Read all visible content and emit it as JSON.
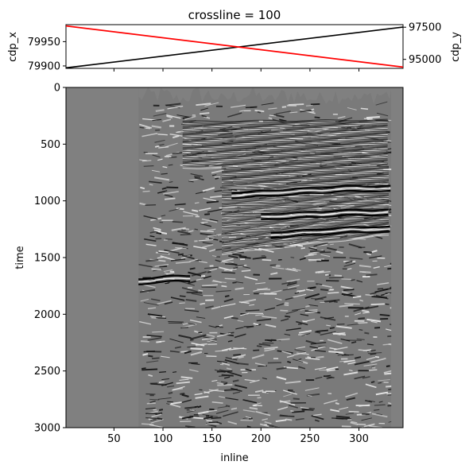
{
  "chart_data": [
    {
      "type": "line",
      "title": "crossline = 100",
      "ylabel_left": "cdp_x",
      "ylabel_right": "cdp_y",
      "xlim": [
        1,
        345
      ],
      "ylim_left": [
        79895,
        79985
      ],
      "ylim_right": [
        94300,
        97700
      ],
      "yticks_left": [
        79900,
        79950
      ],
      "yticks_left_labels": [
        "79900",
        "79950"
      ],
      "yticks_right": [
        95000,
        97500
      ],
      "yticks_right_labels": [
        "95000",
        "97500"
      ],
      "xticks": [
        50,
        100,
        150,
        200,
        250,
        300
      ],
      "series": [
        {
          "axis": "left",
          "color": "#000000",
          "x": [
            1,
            345
          ],
          "y": [
            79896,
            79980
          ]
        },
        {
          "axis": "right",
          "color": "#ff0000",
          "x": [
            1,
            345
          ],
          "y": [
            97600,
            94400
          ]
        }
      ]
    },
    {
      "type": "heatmap",
      "xlabel": "inline",
      "ylabel": "time",
      "xlim": [
        1,
        345
      ],
      "ylim": [
        3000,
        0
      ],
      "xticks": [
        50,
        100,
        150,
        200,
        250,
        300
      ],
      "xtick_labels": [
        "50",
        "100",
        "150",
        "200",
        "250",
        "300"
      ],
      "yticks": [
        0,
        500,
        1000,
        1500,
        2000,
        2500,
        3000
      ],
      "ytick_labels": [
        "0",
        "500",
        "1000",
        "1500",
        "2000",
        "2500",
        "3000"
      ],
      "colormap": "grayscale",
      "background_color": "#808080",
      "data_start_inline": 75,
      "data_end_inline": 333,
      "reflectors": [
        {
          "time_start": 870,
          "time_end": 930,
          "inline_start": 170,
          "inline_end": 333
        },
        {
          "time_start": 1080,
          "time_end": 1120,
          "inline_start": 200,
          "inline_end": 333
        },
        {
          "time_start": 1230,
          "time_end": 1280,
          "inline_start": 210,
          "inline_end": 333
        },
        {
          "time_start": 1660,
          "time_end": 1690,
          "inline_start": 75,
          "inline_end": 130
        }
      ]
    }
  ]
}
